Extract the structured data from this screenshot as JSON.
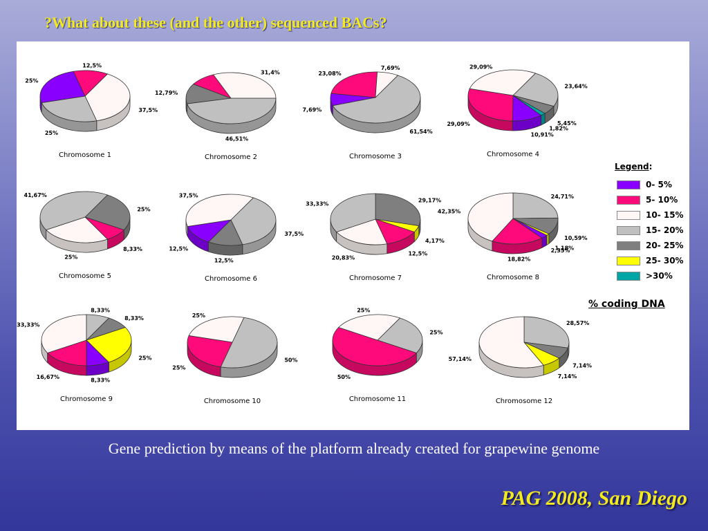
{
  "slide": {
    "title": "?What about these (and the other) sequenced BACs?",
    "caption": "Gene prediction by means of  the platform already created for grapewine genome",
    "footer": "PAG 2008, San Diego"
  },
  "legend": {
    "title": "Legend",
    "items": [
      {
        "label": "0- 5%",
        "color": "#8a00ff"
      },
      {
        "label": "5- 10%",
        "color": "#ff0a7a"
      },
      {
        "label": "10- 15%",
        "color": "#fff7f6"
      },
      {
        "label": "15- 20%",
        "color": "#c0c0c0"
      },
      {
        "label": "20- 25%",
        "color": "#7f7f7f"
      },
      {
        "label": "25- 30%",
        "color": "#ffff00"
      },
      {
        "label": ">30%",
        "color": "#00a6a6"
      }
    ],
    "note": "% coding DNA"
  },
  "chart_data": [
    {
      "type": "pie",
      "title": "Chromosome 1",
      "series": [
        {
          "values": [
            37.5,
            25,
            25,
            12.5
          ],
          "categories": [
            "10- 15%",
            "15- 20%",
            "0- 5%",
            "5- 10%"
          ],
          "labels": [
            "37,5%",
            "25%",
            "25%",
            "12,5%"
          ]
        }
      ]
    },
    {
      "type": "pie",
      "title": "Chromosome 2",
      "series": [
        {
          "values": [
            46.51,
            12.79,
            9.3,
            31.4
          ],
          "categories": [
            "15- 20%",
            "20- 25%",
            "5- 10%",
            "10- 15%"
          ],
          "labels": [
            "46,51%",
            "12,79%",
            "",
            "31,4%"
          ]
        }
      ]
    },
    {
      "type": "pie",
      "title": "Chromosome 3",
      "series": [
        {
          "values": [
            61.54,
            7.69,
            23.08,
            7.69
          ],
          "categories": [
            "15- 20%",
            "0- 5%",
            "5- 10%",
            "10- 15%"
          ],
          "labels": [
            "61,54%",
            "7,69%",
            "23,08%",
            "7,69%"
          ]
        }
      ]
    },
    {
      "type": "pie",
      "title": "Chromosome 4",
      "series": [
        {
          "values": [
            23.64,
            5.45,
            1.82,
            10.91,
            29.09,
            29.09
          ],
          "categories": [
            "15- 20%",
            "20- 25%",
            ">30%",
            "0- 5%",
            "5- 10%",
            "10- 15%"
          ],
          "labels": [
            "23,64%",
            "5,45%",
            "1,82%",
            "10,91%",
            "29,09%",
            "29,09%"
          ]
        }
      ]
    },
    {
      "type": "pie",
      "title": "Chromosome 5",
      "series": [
        {
          "values": [
            25,
            8.33,
            25,
            41.67
          ],
          "categories": [
            "20- 25%",
            "5- 10%",
            "10- 15%",
            "15- 20%"
          ],
          "labels": [
            "25%",
            "8,33%",
            "25%",
            "41,67%"
          ]
        }
      ]
    },
    {
      "type": "pie",
      "title": "Chromosome 6",
      "series": [
        {
          "values": [
            37.5,
            12.5,
            12.5,
            37.5
          ],
          "categories": [
            "15- 20%",
            "20- 25%",
            "0- 5%",
            "10- 15%"
          ],
          "labels": [
            "37,5%",
            "12,5%",
            "12,5%",
            "37,5%"
          ]
        }
      ]
    },
    {
      "type": "pie",
      "title": "Chromosome 7",
      "series": [
        {
          "values": [
            29.17,
            4.17,
            12.5,
            20.83,
            33.33
          ],
          "categories": [
            "20- 25%",
            "25- 30%",
            "5- 10%",
            "10- 15%",
            "15- 20%"
          ],
          "labels": [
            "29,17%",
            "4,17%",
            "12,5%",
            "20,83%",
            "33,33%"
          ]
        }
      ]
    },
    {
      "type": "pie",
      "title": "Chromosome 8",
      "series": [
        {
          "values": [
            24.71,
            10.59,
            1.18,
            2.35,
            18.82,
            42.35
          ],
          "categories": [
            "15- 20%",
            "20- 25%",
            "25- 30%",
            "0- 5%",
            "5- 10%",
            "10- 15%"
          ],
          "labels": [
            "24,71%",
            "10,59%",
            "1,18%",
            "2,35%",
            "18,82%",
            "42,35%"
          ]
        }
      ]
    },
    {
      "type": "pie",
      "title": "Chromosome 9",
      "series": [
        {
          "values": [
            8.33,
            25,
            8.33,
            16.67,
            33.33,
            8.33
          ],
          "categories": [
            "20- 25%",
            "25- 30%",
            "0- 5%",
            "5- 10%",
            "10- 15%",
            "15- 20%"
          ],
          "labels": [
            "8,33%",
            "25%",
            "8,33%",
            "16,67%",
            "33,33%",
            "8,33%"
          ]
        }
      ]
    },
    {
      "type": "pie",
      "title": "Chromosome 10",
      "series": [
        {
          "values": [
            50,
            25,
            25
          ],
          "categories": [
            "15- 20%",
            "5- 10%",
            "10- 15%"
          ],
          "labels": [
            "50%",
            "25%",
            "25%"
          ]
        }
      ]
    },
    {
      "type": "pie",
      "title": "Chromosome 11",
      "series": [
        {
          "values": [
            25,
            50,
            25
          ],
          "categories": [
            "15- 20%",
            "5- 10%",
            "10- 15%"
          ],
          "labels": [
            "25%",
            "50%",
            "25%"
          ]
        }
      ]
    },
    {
      "type": "pie",
      "title": "Chromosome 12",
      "series": [
        {
          "values": [
            28.57,
            7.14,
            7.14,
            57.14
          ],
          "categories": [
            "15- 20%",
            "20- 25%",
            "25- 30%",
            "10- 15%"
          ],
          "labels": [
            "28,57%",
            "7,14%",
            "7,14%",
            "57,14%"
          ]
        }
      ]
    }
  ]
}
